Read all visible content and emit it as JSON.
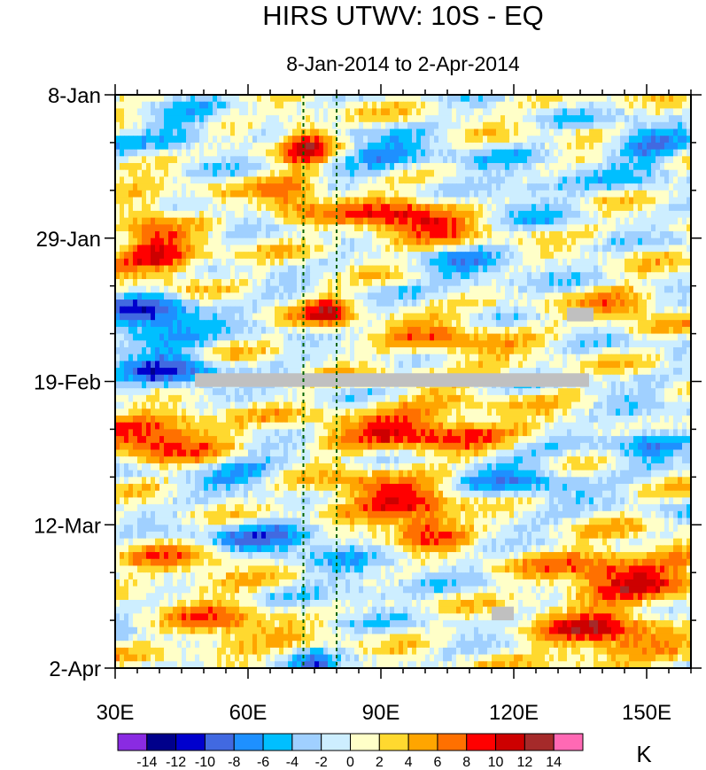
{
  "chart_data": {
    "type": "heatmap",
    "title": "HIRS UTWV: 10S - EQ",
    "subtitle": "8-Jan-2014 to 2-Apr-2014",
    "xlabel": "",
    "ylabel": "",
    "x_range": [
      30,
      160
    ],
    "x_ticks": [
      {
        "value": 30,
        "label": "30E"
      },
      {
        "value": 60,
        "label": "60E"
      },
      {
        "value": 90,
        "label": "90E"
      },
      {
        "value": 120,
        "label": "120E"
      },
      {
        "value": 150,
        "label": "150E"
      }
    ],
    "y_range_days": [
      0,
      84
    ],
    "y_ticks": [
      {
        "day": 0,
        "label": "8-Jan"
      },
      {
        "day": 21,
        "label": "29-Jan"
      },
      {
        "day": 42,
        "label": "19-Feb"
      },
      {
        "day": 63,
        "label": "12-Mar"
      },
      {
        "day": 84,
        "label": "2-Apr"
      }
    ],
    "reference_lines_lon": [
      72.5,
      80
    ],
    "colorbar": {
      "unit": "K",
      "levels": [
        -14,
        -12,
        -10,
        -8,
        -6,
        -4,
        -2,
        0,
        2,
        4,
        6,
        8,
        10,
        12,
        14
      ],
      "level_labels": [
        "-14",
        "-12",
        "-10",
        "-8",
        "-6",
        "-4",
        "-2",
        "0",
        "2",
        "4",
        "6",
        "8",
        "10",
        "12",
        "14"
      ],
      "colors": [
        "#8a2be2",
        "#00008b",
        "#0000cd",
        "#4169e1",
        "#1e90ff",
        "#00bfff",
        "#a0d0ff",
        "#cdeeff",
        "#ffffc8",
        "#ffd92f",
        "#ffa500",
        "#ff7000",
        "#ff0000",
        "#cd0000",
        "#a52a2a",
        "#ff69b4"
      ]
    },
    "missing_color": "#c0c0c0",
    "missing_regions": [
      {
        "lon": [
          48,
          137
        ],
        "day": [
          40.8,
          42.8
        ]
      },
      {
        "lon": [
          132,
          138
        ],
        "day": [
          31.2,
          33.2
        ]
      },
      {
        "lon": [
          115,
          120
        ],
        "day": [
          75.0,
          77.0
        ]
      }
    ],
    "anomaly_features": [
      {
        "lon": 73,
        "day": 7,
        "amp": 9,
        "slon": 4,
        "sday": 2.5
      },
      {
        "lon": 70,
        "day": 15,
        "amp": 7,
        "slon": 5,
        "sday": 2.5
      },
      {
        "lon": 97,
        "day": 18,
        "amp": 10,
        "slon": 10,
        "sday": 2.5
      },
      {
        "lon": 40,
        "day": 24,
        "amp": 10,
        "slon": 7,
        "sday": 2.5
      },
      {
        "lon": 37,
        "day": 17,
        "amp": 6,
        "slon": 5,
        "sday": 2
      },
      {
        "lon": 78,
        "day": 32,
        "amp": 8,
        "slon": 4,
        "sday": 2
      },
      {
        "lon": 145,
        "day": 31,
        "amp": 6,
        "slon": 6,
        "sday": 2
      },
      {
        "lon": 105,
        "day": 36,
        "amp": 5,
        "slon": 10,
        "sday": 3
      },
      {
        "lon": 40,
        "day": 50,
        "amp": 10,
        "slon": 10,
        "sday": 2.5
      },
      {
        "lon": 100,
        "day": 49,
        "amp": 9,
        "slon": 15,
        "sday": 2.5
      },
      {
        "lon": 90,
        "day": 59,
        "amp": 7,
        "slon": 12,
        "sday": 3
      },
      {
        "lon": 100,
        "day": 63,
        "amp": 9,
        "slon": 6,
        "sday": 2
      },
      {
        "lon": 145,
        "day": 70,
        "amp": 9,
        "slon": 12,
        "sday": 3
      },
      {
        "lon": 140,
        "day": 79,
        "amp": 9,
        "slon": 10,
        "sday": 3
      },
      {
        "lon": 45,
        "day": 68,
        "amp": 5,
        "slon": 10,
        "sday": 3
      },
      {
        "lon": 55,
        "day": 78,
        "amp": 6,
        "slon": 8,
        "sday": 3
      },
      {
        "lon": 75,
        "day": 84,
        "amp": -6,
        "slon": 3,
        "sday": 1.5
      },
      {
        "lon": 38,
        "day": 33,
        "amp": -10,
        "slon": 8,
        "sday": 3
      },
      {
        "lon": 42,
        "day": 41,
        "amp": -8,
        "slon": 8,
        "sday": 2
      },
      {
        "lon": 45,
        "day": 5,
        "amp": -6,
        "slon": 6,
        "sday": 2
      },
      {
        "lon": 92,
        "day": 9,
        "amp": -6,
        "slon": 8,
        "sday": 2
      },
      {
        "lon": 110,
        "day": 26,
        "amp": -5,
        "slon": 8,
        "sday": 2
      },
      {
        "lon": 65,
        "day": 65,
        "amp": -7,
        "slon": 14,
        "sday": 2
      },
      {
        "lon": 150,
        "day": 8,
        "amp": -6,
        "slon": 6,
        "sday": 3
      },
      {
        "lon": 120,
        "day": 56,
        "amp": -5,
        "slon": 10,
        "sday": 3
      },
      {
        "lon": 60,
        "day": 55,
        "amp": -5,
        "slon": 8,
        "sday": 2
      },
      {
        "lon": 120,
        "day": 14,
        "amp": -4,
        "slon": 10,
        "sday": 3
      },
      {
        "lon": 150,
        "day": 50,
        "amp": -5,
        "slon": 6,
        "sday": 3
      },
      {
        "lon": 85,
        "day": 72,
        "amp": -4,
        "slon": 8,
        "sday": 2
      }
    ]
  }
}
